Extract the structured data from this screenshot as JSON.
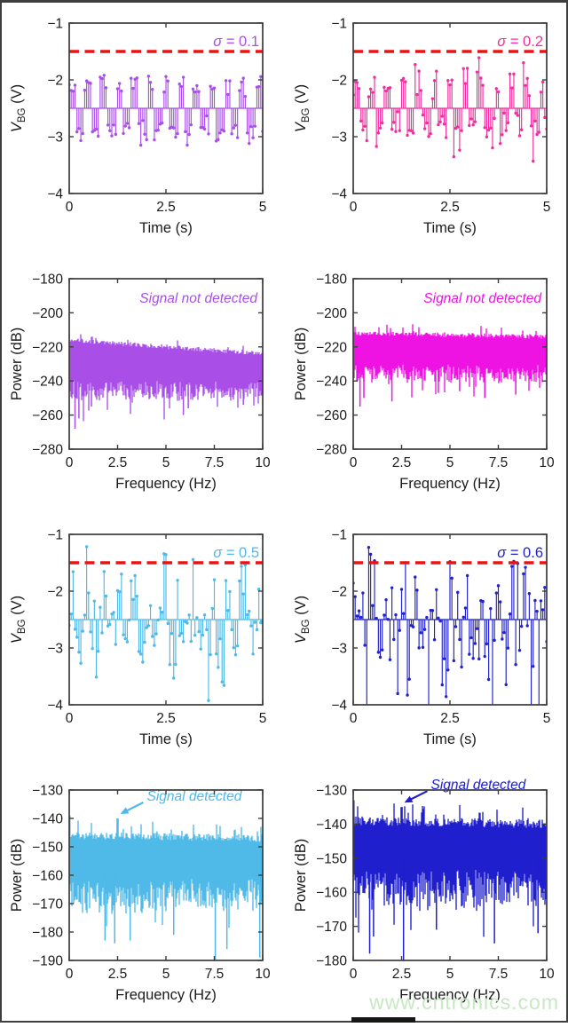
{
  "watermark": {
    "text": "www.cntronics.com",
    "color": "#c7e9c2"
  },
  "frame": {
    "border_color": "#3e3e3e"
  },
  "axis": {
    "line_color": "#3b3b3b",
    "text_color": "#1a1a1a"
  },
  "chart_data": [
    {
      "type": "stem",
      "name": "vbg-time-sigma-0.1",
      "color": "#A94FE8",
      "annotation": "σ = 0.1",
      "threshold_v": -1.5,
      "threshold_color": "#EE1111",
      "baseline_v": -2.5,
      "signal": {
        "shape": "square",
        "frequency_hz": 2.5,
        "high_v": -2.1,
        "low_v": -2.9,
        "sample_rate_hz": 20,
        "duration_s": 5,
        "noise_sigma": 0.1
      },
      "xlabel": "Time (s)",
      "ylabel": "V_BG (V)",
      "xlim": [
        0,
        5
      ],
      "ylim": [
        -4,
        -1
      ],
      "xticks": [
        0,
        2.5,
        5
      ],
      "yticks": [
        -1,
        -2,
        -3,
        -4
      ],
      "seed": 7
    },
    {
      "type": "stem",
      "name": "vbg-time-sigma-0.2",
      "color": "#EE2F9F",
      "annotation": "σ = 0.2",
      "threshold_v": -1.5,
      "threshold_color": "#EE1111",
      "baseline_v": -2.5,
      "signal": {
        "shape": "square",
        "frequency_hz": 2.5,
        "high_v": -2.1,
        "low_v": -2.9,
        "sample_rate_hz": 20,
        "duration_s": 5,
        "noise_sigma": 0.2
      },
      "xlabel": "Time (s)",
      "ylabel": "V_BG (V)",
      "xlim": [
        0,
        5
      ],
      "ylim": [
        -4,
        -1
      ],
      "xticks": [
        0,
        2.5,
        5
      ],
      "yticks": [
        -1,
        -2,
        -3,
        -4
      ],
      "seed": 13
    },
    {
      "type": "spectrum",
      "name": "power-spectrum-sigma-0.1",
      "color": "#A94FE8",
      "annotation": "Signal not detected",
      "detected": false,
      "xlabel": "Frequency (Hz)",
      "ylabel": "Power (dB)",
      "xlim": [
        0,
        10
      ],
      "ylim": [
        -280,
        -180
      ],
      "xticks": [
        0,
        2.5,
        5,
        7.5,
        10
      ],
      "yticks": [
        -180,
        -200,
        -220,
        -240,
        -260,
        -280
      ],
      "band": {
        "top_start_db": -216,
        "top_end_db": -224,
        "center_db": -236,
        "bottom_db": -250,
        "spike_min_db": -266,
        "spike_prob": 0.05
      },
      "deep_spikes": [
        {
          "freq_hz": 0.3,
          "power_db": -268
        },
        {
          "freq_hz": 0.5,
          "power_db": -262
        },
        {
          "freq_hz": 1.15,
          "power_db": -255
        },
        {
          "freq_hz": 5.9,
          "power_db": -260
        },
        {
          "freq_hz": 6.15,
          "power_db": -256
        },
        {
          "freq_hz": 9.0,
          "power_db": -254
        }
      ],
      "peaks": [],
      "seed": 3
    },
    {
      "type": "spectrum",
      "name": "power-spectrum-sigma-0.2",
      "color": "#EE13E3",
      "annotation": "Signal not detected",
      "detected": false,
      "xlabel": "Frequency (Hz)",
      "ylabel": "Power (dB)",
      "xlim": [
        0,
        10
      ],
      "ylim": [
        -280,
        -180
      ],
      "xticks": [
        0,
        2.5,
        5,
        7.5,
        10
      ],
      "yticks": [
        -180,
        -200,
        -220,
        -240,
        -260,
        -280
      ],
      "band": {
        "top_start_db": -212,
        "top_end_db": -214,
        "center_db": -227,
        "bottom_db": -239,
        "spike_min_db": -252,
        "spike_prob": 0.05
      },
      "deep_spikes": [
        {
          "freq_hz": 0.35,
          "power_db": -255
        },
        {
          "freq_hz": 0.55,
          "power_db": -250
        },
        {
          "freq_hz": 2.0,
          "power_db": -252
        },
        {
          "freq_hz": 4.4,
          "power_db": -247
        },
        {
          "freq_hz": 5.5,
          "power_db": -246
        },
        {
          "freq_hz": 6.8,
          "power_db": -250
        },
        {
          "freq_hz": 8.4,
          "power_db": -248
        }
      ],
      "peaks": [],
      "seed": 5
    },
    {
      "type": "stem",
      "name": "vbg-time-sigma-0.5",
      "color": "#4FB9E8",
      "annotation": "σ = 0.5",
      "threshold_v": -1.5,
      "threshold_color": "#EE1111",
      "baseline_v": -2.5,
      "signal": {
        "shape": "square",
        "frequency_hz": 2.5,
        "high_v": -2.1,
        "low_v": -2.9,
        "sample_rate_hz": 20,
        "duration_s": 5,
        "noise_sigma": 0.5
      },
      "xlabel": "Time (s)",
      "ylabel": "V_BG (V)",
      "xlim": [
        0,
        5
      ],
      "ylim": [
        -4,
        -1
      ],
      "xticks": [
        0,
        2.5,
        5
      ],
      "yticks": [
        -1,
        -2,
        -3,
        -4
      ],
      "seed": 21
    },
    {
      "type": "stem",
      "name": "vbg-time-sigma-0.6",
      "color": "#2222CC",
      "annotation": "σ = 0.6",
      "threshold_v": -1.5,
      "threshold_color": "#EE1111",
      "baseline_v": -2.5,
      "signal": {
        "shape": "square",
        "frequency_hz": 2.5,
        "high_v": -2.1,
        "low_v": -2.9,
        "sample_rate_hz": 20,
        "duration_s": 5,
        "noise_sigma": 0.6
      },
      "xlabel": "Time (s)",
      "ylabel": "V_BG (V)",
      "xlim": [
        0,
        5
      ],
      "ylim": [
        -4,
        -1
      ],
      "xticks": [
        0,
        2.5,
        5
      ],
      "yticks": [
        -1,
        -2,
        -3,
        -4
      ],
      "seed": 29
    },
    {
      "type": "spectrum",
      "name": "power-spectrum-sigma-0.5",
      "color": "#4FB9E8",
      "annotation": "Signal detected",
      "detected": true,
      "xlabel": "Frequency (Hz)",
      "ylabel": "Power (dB)",
      "xlim": [
        0,
        10
      ],
      "ylim": [
        -190,
        -130
      ],
      "xticks": [
        0,
        2.5,
        5,
        7.5,
        10
      ],
      "yticks": [
        -130,
        -140,
        -150,
        -160,
        -170,
        -180,
        -190
      ],
      "band": {
        "top_start_db": -146,
        "top_end_db": -147,
        "center_db": -158,
        "bottom_db": -171,
        "spike_min_db": -184,
        "spike_prob": 0.05
      },
      "deep_spikes": [
        {
          "freq_hz": 1.85,
          "power_db": -183
        },
        {
          "freq_hz": 2.35,
          "power_db": -184
        },
        {
          "freq_hz": 3.15,
          "power_db": -183
        },
        {
          "freq_hz": 5.4,
          "power_db": -181
        },
        {
          "freq_hz": 7.55,
          "power_db": -191
        },
        {
          "freq_hz": 8.15,
          "power_db": -186
        },
        {
          "freq_hz": 9.85,
          "power_db": -189
        }
      ],
      "peaks": [
        {
          "freq_hz": 0,
          "power_db": -139
        },
        {
          "freq_hz": 2.5,
          "power_db": -140,
          "is_signal": true
        }
      ],
      "seed": 9
    },
    {
      "type": "spectrum",
      "name": "power-spectrum-sigma-0.6",
      "color": "#1F1FCE",
      "annotation": "Signal detected",
      "detected": true,
      "xlabel": "Frequency (Hz)",
      "ylabel": "Power (dB)",
      "xlim": [
        0,
        10
      ],
      "ylim": [
        -180,
        -130
      ],
      "xticks": [
        0,
        2.5,
        5,
        7.5,
        10
      ],
      "yticks": [
        -130,
        -140,
        -150,
        -160,
        -170,
        -180
      ],
      "band": {
        "top_start_db": -139,
        "top_end_db": -140,
        "center_db": -150,
        "bottom_db": -163,
        "spike_min_db": -174,
        "spike_prob": 0.05
      },
      "deep_spikes": [
        {
          "freq_hz": 0.85,
          "power_db": -178
        },
        {
          "freq_hz": 1.05,
          "power_db": -173
        },
        {
          "freq_hz": 2.6,
          "power_db": -180
        },
        {
          "freq_hz": 4.3,
          "power_db": -171
        },
        {
          "freq_hz": 7.3,
          "power_db": -175
        },
        {
          "freq_hz": 9.55,
          "power_db": -172
        }
      ],
      "peaks": [
        {
          "freq_hz": 0,
          "power_db": -133
        },
        {
          "freq_hz": 2.5,
          "power_db": -135,
          "is_signal": true
        }
      ],
      "seed": 15
    }
  ]
}
